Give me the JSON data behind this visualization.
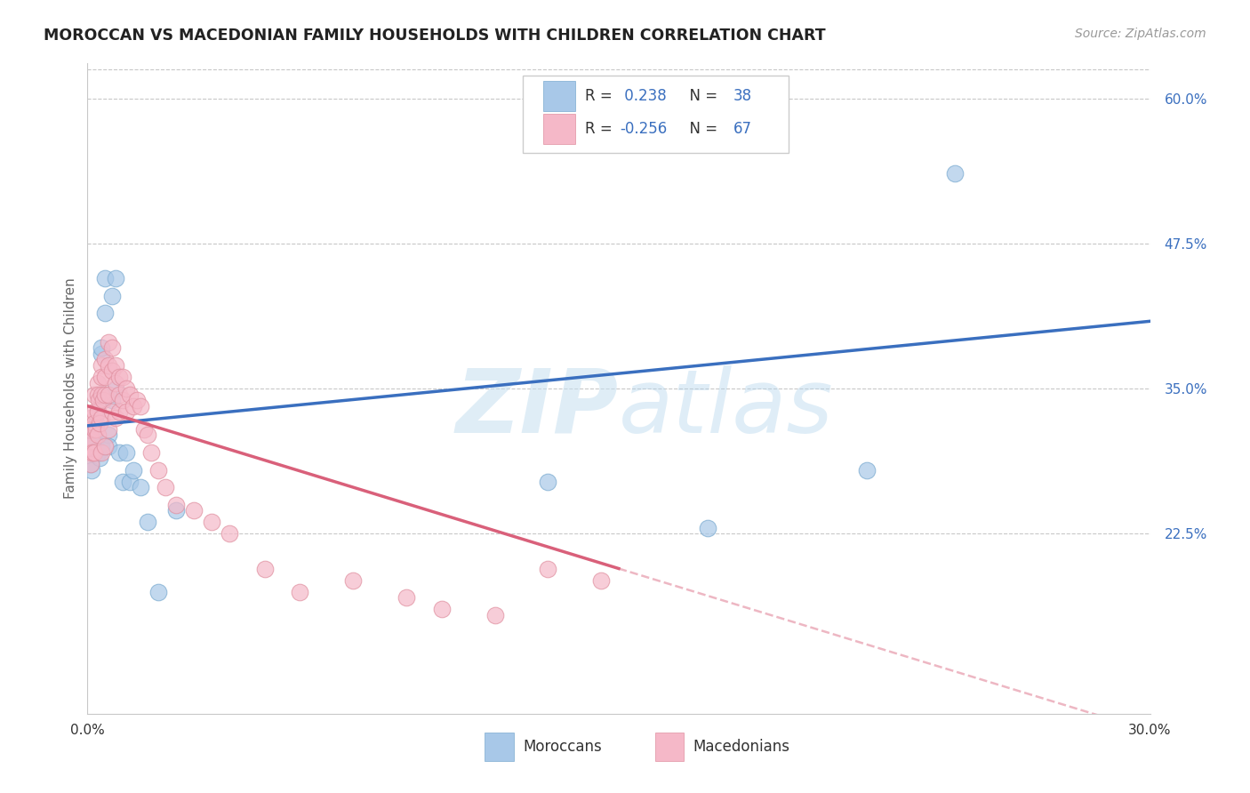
{
  "title": "MOROCCAN VS MACEDONIAN FAMILY HOUSEHOLDS WITH CHILDREN CORRELATION CHART",
  "source": "Source: ZipAtlas.com",
  "ylabel": "Family Households with Children",
  "x_min": 0.0,
  "x_max": 0.3,
  "y_min": 0.07,
  "y_max": 0.63,
  "x_ticks": [
    0.0,
    0.05,
    0.1,
    0.15,
    0.2,
    0.25,
    0.3
  ],
  "x_tick_labels": [
    "0.0%",
    "",
    "",
    "",
    "",
    "",
    "30.0%"
  ],
  "y_ticks_right": [
    0.225,
    0.35,
    0.475,
    0.6
  ],
  "y_tick_labels_right": [
    "22.5%",
    "35.0%",
    "47.5%",
    "60.0%"
  ],
  "r_moroccan": 0.238,
  "n_moroccan": 38,
  "r_macedonian": -0.256,
  "n_macedonian": 67,
  "moroccan_color": "#a8c8e8",
  "moroccan_edge_color": "#7aaad0",
  "moroccan_line_color": "#3a6fbf",
  "macedonian_color": "#f5b8c8",
  "macedonian_edge_color": "#e090a0",
  "macedonian_line_color": "#d9607a",
  "watermark_color": "#c8dff0",
  "watermark_text_color": "#7ab0d0",
  "legend_label_moroccan": "Moroccans",
  "legend_label_macedonian": "Macedonians",
  "blue_line_x0": 0.0,
  "blue_line_y0": 0.318,
  "blue_line_x1": 0.3,
  "blue_line_y1": 0.408,
  "pink_line_x0": 0.0,
  "pink_line_y0": 0.335,
  "pink_line_x1": 0.15,
  "pink_line_y1": 0.195,
  "moroccan_x": [
    0.0008,
    0.001,
    0.0012,
    0.0015,
    0.0018,
    0.002,
    0.002,
    0.0022,
    0.0025,
    0.003,
    0.003,
    0.0032,
    0.0035,
    0.004,
    0.004,
    0.004,
    0.0045,
    0.005,
    0.005,
    0.006,
    0.006,
    0.007,
    0.007,
    0.008,
    0.008,
    0.009,
    0.01,
    0.011,
    0.012,
    0.013,
    0.015,
    0.017,
    0.02,
    0.025,
    0.13,
    0.175,
    0.22,
    0.245
  ],
  "moroccan_y": [
    0.285,
    0.295,
    0.28,
    0.3,
    0.295,
    0.31,
    0.315,
    0.305,
    0.32,
    0.295,
    0.33,
    0.295,
    0.29,
    0.38,
    0.385,
    0.3,
    0.345,
    0.445,
    0.415,
    0.31,
    0.3,
    0.34,
    0.43,
    0.445,
    0.35,
    0.295,
    0.27,
    0.295,
    0.27,
    0.28,
    0.265,
    0.235,
    0.175,
    0.245,
    0.27,
    0.23,
    0.28,
    0.535
  ],
  "macedonian_x": [
    0.0005,
    0.0008,
    0.001,
    0.001,
    0.001,
    0.0012,
    0.0015,
    0.0018,
    0.002,
    0.002,
    0.002,
    0.002,
    0.0025,
    0.003,
    0.003,
    0.003,
    0.003,
    0.0032,
    0.0035,
    0.004,
    0.004,
    0.004,
    0.004,
    0.004,
    0.0045,
    0.005,
    0.005,
    0.005,
    0.005,
    0.006,
    0.006,
    0.006,
    0.006,
    0.007,
    0.007,
    0.007,
    0.008,
    0.008,
    0.008,
    0.009,
    0.009,
    0.009,
    0.01,
    0.01,
    0.011,
    0.011,
    0.012,
    0.013,
    0.014,
    0.015,
    0.016,
    0.017,
    0.018,
    0.02,
    0.022,
    0.025,
    0.03,
    0.035,
    0.04,
    0.05,
    0.06,
    0.075,
    0.09,
    0.1,
    0.115,
    0.13,
    0.145
  ],
  "macedonian_y": [
    0.3,
    0.295,
    0.325,
    0.315,
    0.285,
    0.305,
    0.295,
    0.315,
    0.345,
    0.33,
    0.32,
    0.295,
    0.315,
    0.355,
    0.345,
    0.33,
    0.31,
    0.34,
    0.32,
    0.37,
    0.36,
    0.345,
    0.325,
    0.295,
    0.34,
    0.375,
    0.36,
    0.345,
    0.3,
    0.39,
    0.37,
    0.345,
    0.315,
    0.385,
    0.365,
    0.33,
    0.37,
    0.355,
    0.325,
    0.36,
    0.345,
    0.33,
    0.36,
    0.34,
    0.35,
    0.33,
    0.345,
    0.335,
    0.34,
    0.335,
    0.315,
    0.31,
    0.295,
    0.28,
    0.265,
    0.25,
    0.245,
    0.235,
    0.225,
    0.195,
    0.175,
    0.185,
    0.17,
    0.16,
    0.155,
    0.195,
    0.185
  ]
}
